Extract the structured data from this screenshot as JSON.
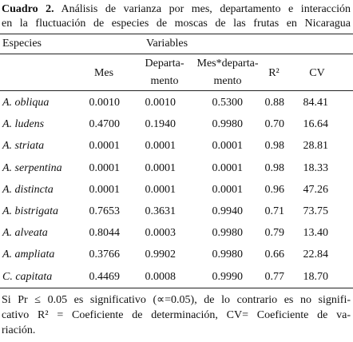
{
  "caption": {
    "label": "Cuadro 2.",
    "lines": [
      "Análisis de varianza por mes, departamento e interacción",
      "en la fluctuación de especies de moscas de las frutas en Nicaragua"
    ]
  },
  "table": {
    "header": {
      "first": "Especies",
      "group": "Variables"
    },
    "columns": [
      [
        "Mes"
      ],
      [
        "Departa-",
        "mento"
      ],
      [
        "Mes*departa-",
        "mento"
      ],
      [
        "R²"
      ],
      [
        "CV"
      ]
    ],
    "rows": [
      [
        "A. obliqua",
        "0.0010",
        "0.0010",
        "0.5300",
        "0.88",
        "84.41"
      ],
      [
        "A. ludens",
        "0.4700",
        "0.1940",
        "0.9980",
        "0.70",
        "16.64"
      ],
      [
        "A. striata",
        "0.0001",
        "0.0001",
        "0.0001",
        "0.98",
        "28.81"
      ],
      [
        "A. serpentina",
        "0.0001",
        "0.0001",
        "0.0001",
        "0.98",
        "18.33"
      ],
      [
        "A. distincta",
        "0.0001",
        "0.0001",
        "0.0001",
        "0.96",
        "47.26"
      ],
      [
        "A. bistrigata",
        "0.7653",
        "0.3631",
        "0.9940",
        "0.71",
        "73.75"
      ],
      [
        "A. alveata",
        "0.8044",
        "0.0003",
        "0.9980",
        "0.79",
        "13.40"
      ],
      [
        "A. ampliata",
        "0.3766",
        "0.9902",
        "0.9980",
        "0.66",
        "22.84"
      ],
      [
        "C. capitata",
        "0.4469",
        "0.0008",
        "0.9990",
        "0.77",
        "18.70"
      ]
    ]
  },
  "footnote": [
    "Si Pr ≤ 0.05 es significativo (∝=0.05), de lo contrario es no signifi-",
    "cativo R² = Coeficiente de determinación, CV= Coeficiente de va-",
    "riación."
  ]
}
